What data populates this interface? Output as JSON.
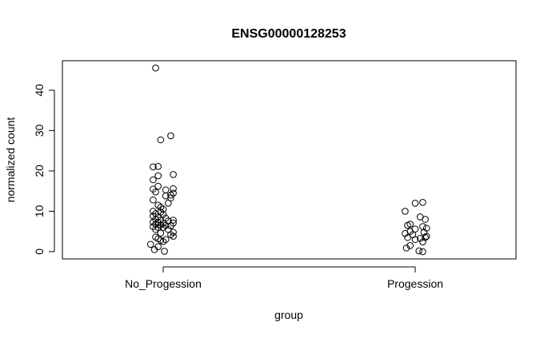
{
  "chart_data": {
    "type": "scatter",
    "title": "ENSG00000128253",
    "xlabel": "group",
    "ylabel": "normalized count",
    "categories": [
      "No_Progession",
      "Progession"
    ],
    "ylim": [
      -1.8,
      47.3
    ],
    "yticks": [
      0,
      10,
      20,
      30,
      40
    ],
    "grid": false,
    "legend": "none",
    "marker": "open-circle",
    "colors": {
      "axis": "#000000",
      "points": "#000000",
      "background": "#ffffff"
    },
    "series": [
      {
        "category": "No_Progession",
        "points": [
          {
            "jitter": -0.03,
            "y": 45.5
          },
          {
            "jitter": 0.03,
            "y": 28.7
          },
          {
            "jitter": -0.01,
            "y": 27.7
          },
          {
            "jitter": -0.04,
            "y": 21.0
          },
          {
            "jitter": -0.02,
            "y": 21.1
          },
          {
            "jitter": 0.04,
            "y": 19.1
          },
          {
            "jitter": -0.02,
            "y": 18.8
          },
          {
            "jitter": -0.04,
            "y": 17.8
          },
          {
            "jitter": -0.02,
            "y": 16.2
          },
          {
            "jitter": -0.04,
            "y": 15.5
          },
          {
            "jitter": 0.01,
            "y": 15.3
          },
          {
            "jitter": 0.04,
            "y": 15.6
          },
          {
            "jitter": -0.03,
            "y": 14.8
          },
          {
            "jitter": 0.04,
            "y": 14.5
          },
          {
            "jitter": 0.03,
            "y": 14.0
          },
          {
            "jitter": 0.01,
            "y": 13.8
          },
          {
            "jitter": 0.03,
            "y": 13.3
          },
          {
            "jitter": -0.04,
            "y": 12.8
          },
          {
            "jitter": 0.02,
            "y": 12.0
          },
          {
            "jitter": -0.02,
            "y": 11.5
          },
          {
            "jitter": -0.01,
            "y": 11.0
          },
          {
            "jitter": 0.0,
            "y": 10.5
          },
          {
            "jitter": -0.04,
            "y": 10.0
          },
          {
            "jitter": -0.01,
            "y": 9.8
          },
          {
            "jitter": -0.03,
            "y": 9.4
          },
          {
            "jitter": 0.0,
            "y": 9.2
          },
          {
            "jitter": -0.04,
            "y": 8.8
          },
          {
            "jitter": -0.02,
            "y": 8.6
          },
          {
            "jitter": 0.01,
            "y": 8.3
          },
          {
            "jitter": -0.03,
            "y": 8.0
          },
          {
            "jitter": -0.01,
            "y": 7.8
          },
          {
            "jitter": 0.04,
            "y": 7.8
          },
          {
            "jitter": 0.02,
            "y": 7.6
          },
          {
            "jitter": -0.04,
            "y": 7.3
          },
          {
            "jitter": -0.02,
            "y": 7.2
          },
          {
            "jitter": 0.0,
            "y": 7.0
          },
          {
            "jitter": 0.04,
            "y": 7.1
          },
          {
            "jitter": -0.03,
            "y": 6.8
          },
          {
            "jitter": -0.01,
            "y": 6.6
          },
          {
            "jitter": 0.01,
            "y": 6.5
          },
          {
            "jitter": 0.03,
            "y": 6.4
          },
          {
            "jitter": -0.04,
            "y": 6.2
          },
          {
            "jitter": -0.02,
            "y": 6.0
          },
          {
            "jitter": 0.0,
            "y": 6.0
          },
          {
            "jitter": 0.02,
            "y": 5.5
          },
          {
            "jitter": -0.03,
            "y": 5.5
          },
          {
            "jitter": 0.04,
            "y": 4.8
          },
          {
            "jitter": -0.01,
            "y": 4.6
          },
          {
            "jitter": 0.03,
            "y": 4.2
          },
          {
            "jitter": 0.04,
            "y": 3.8
          },
          {
            "jitter": -0.03,
            "y": 3.6
          },
          {
            "jitter": -0.02,
            "y": 3.2
          },
          {
            "jitter": 0.01,
            "y": 3.0
          },
          {
            "jitter": -0.01,
            "y": 2.8
          },
          {
            "jitter": 0.0,
            "y": 2.5
          },
          {
            "jitter": -0.05,
            "y": 1.8
          },
          {
            "jitter": -0.02,
            "y": 1.2
          },
          {
            "jitter": -0.035,
            "y": 0.5
          },
          {
            "jitter": 0.005,
            "y": 0.1
          }
        ]
      },
      {
        "category": "Progession",
        "points": [
          {
            "jitter": 0.03,
            "y": 12.2
          },
          {
            "jitter": 0.0,
            "y": 12.0
          },
          {
            "jitter": -0.04,
            "y": 10.0
          },
          {
            "jitter": 0.02,
            "y": 8.6
          },
          {
            "jitter": 0.04,
            "y": 8.0
          },
          {
            "jitter": -0.02,
            "y": 6.8
          },
          {
            "jitter": -0.03,
            "y": 6.5
          },
          {
            "jitter": 0.03,
            "y": 6.2
          },
          {
            "jitter": 0.045,
            "y": 5.8
          },
          {
            "jitter": 0.0,
            "y": 5.6
          },
          {
            "jitter": -0.02,
            "y": 5.0
          },
          {
            "jitter": 0.035,
            "y": 4.8
          },
          {
            "jitter": -0.04,
            "y": 4.5
          },
          {
            "jitter": -0.01,
            "y": 4.2
          },
          {
            "jitter": 0.045,
            "y": 3.8
          },
          {
            "jitter": -0.03,
            "y": 3.5
          },
          {
            "jitter": 0.04,
            "y": 3.5
          },
          {
            "jitter": 0.02,
            "y": 3.3
          },
          {
            "jitter": 0.0,
            "y": 3.0
          },
          {
            "jitter": 0.03,
            "y": 2.4
          },
          {
            "jitter": -0.02,
            "y": 1.5
          },
          {
            "jitter": -0.035,
            "y": 0.9
          },
          {
            "jitter": 0.015,
            "y": 0.2
          },
          {
            "jitter": 0.03,
            "y": 0.0
          }
        ]
      }
    ]
  }
}
